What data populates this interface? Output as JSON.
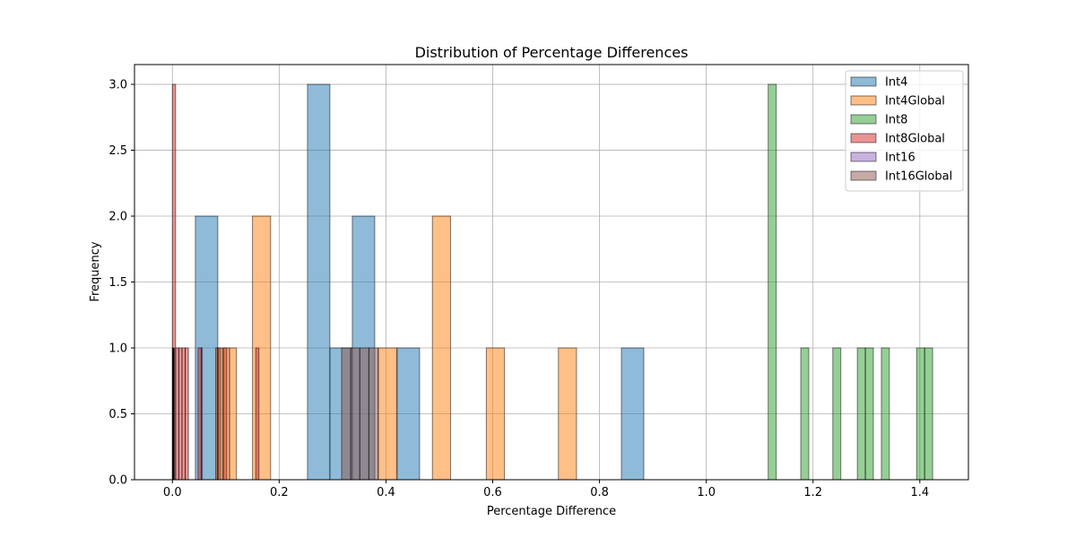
{
  "chart_data": {
    "type": "bar",
    "subtype": "histogram",
    "title": "Distribution of Percentage Differences",
    "xlabel": "Percentage Difference",
    "ylabel": "Frequency",
    "xlim": [
      -0.071,
      1.491
    ],
    "ylim": [
      0,
      3.15
    ],
    "xticks": [
      0.0,
      0.2,
      0.4,
      0.6,
      0.8,
      1.0,
      1.2,
      1.4
    ],
    "xtick_labels": [
      "0.0",
      "0.2",
      "0.4",
      "0.6",
      "0.8",
      "1.0",
      "1.2",
      "1.4"
    ],
    "yticks": [
      0.0,
      0.5,
      1.0,
      1.5,
      2.0,
      2.5,
      3.0
    ],
    "ytick_labels": [
      "0.0",
      "0.5",
      "1.0",
      "1.5",
      "2.0",
      "2.5",
      "3.0"
    ],
    "grid": true,
    "legend_position": "top-right",
    "bar_alpha": 0.5,
    "series": [
      {
        "name": "Int4",
        "color": "#1f77b4",
        "bins": [
          {
            "x0": 0.043,
            "x1": 0.085,
            "count": 2
          },
          {
            "x0": 0.253,
            "x1": 0.295,
            "count": 3
          },
          {
            "x0": 0.295,
            "x1": 0.337,
            "count": 1
          },
          {
            "x0": 0.337,
            "x1": 0.379,
            "count": 2
          },
          {
            "x0": 0.421,
            "x1": 0.463,
            "count": 1
          },
          {
            "x0": 0.841,
            "x1": 0.883,
            "count": 1
          }
        ]
      },
      {
        "name": "Int4Global",
        "color": "#ff7f0e",
        "bins": [
          {
            "x0": 0.081,
            "x1": 0.094,
            "count": 1
          },
          {
            "x0": 0.094,
            "x1": 0.107,
            "count": 1
          },
          {
            "x0": 0.107,
            "x1": 0.12,
            "count": 1
          },
          {
            "x0": 0.15,
            "x1": 0.184,
            "count": 2
          },
          {
            "x0": 0.386,
            "x1": 0.42,
            "count": 1
          },
          {
            "x0": 0.487,
            "x1": 0.521,
            "count": 2
          },
          {
            "x0": 0.588,
            "x1": 0.622,
            "count": 1
          },
          {
            "x0": 0.723,
            "x1": 0.757,
            "count": 1
          }
        ]
      },
      {
        "name": "Int8",
        "color": "#2ca02c",
        "bins": [
          {
            "x0": 1.116,
            "x1": 1.131,
            "count": 3
          },
          {
            "x0": 1.177,
            "x1": 1.192,
            "count": 1
          },
          {
            "x0": 1.237,
            "x1": 1.252,
            "count": 1
          },
          {
            "x0": 1.283,
            "x1": 1.298,
            "count": 1
          },
          {
            "x0": 1.298,
            "x1": 1.313,
            "count": 1
          },
          {
            "x0": 1.328,
            "x1": 1.343,
            "count": 1
          },
          {
            "x0": 1.394,
            "x1": 1.409,
            "count": 1
          },
          {
            "x0": 1.409,
            "x1": 1.424,
            "count": 1
          }
        ]
      },
      {
        "name": "Int8Global",
        "color": "#d62728",
        "bins": [
          {
            "x0": 0.0,
            "x1": 0.006,
            "count": 3
          },
          {
            "x0": 0.006,
            "x1": 0.012,
            "count": 1
          },
          {
            "x0": 0.012,
            "x1": 0.018,
            "count": 1
          },
          {
            "x0": 0.018,
            "x1": 0.024,
            "count": 1
          },
          {
            "x0": 0.024,
            "x1": 0.03,
            "count": 1
          },
          {
            "x0": 0.048,
            "x1": 0.054,
            "count": 1
          },
          {
            "x0": 0.084,
            "x1": 0.09,
            "count": 1
          },
          {
            "x0": 0.096,
            "x1": 0.102,
            "count": 1
          },
          {
            "x0": 0.156,
            "x1": 0.162,
            "count": 1
          }
        ]
      },
      {
        "name": "Int16",
        "color": "#9467bd",
        "bins": [
          {
            "x0": 0.0,
            "x1": 0.002,
            "count": 1
          },
          {
            "x0": 0.054,
            "x1": 0.056,
            "count": 1
          },
          {
            "x0": 0.084,
            "x1": 0.086,
            "count": 1
          }
        ]
      },
      {
        "name": "Int16Global",
        "color": "#8c564b",
        "bins": [
          {
            "x0": 0.317,
            "x1": 0.334,
            "count": 1
          },
          {
            "x0": 0.334,
            "x1": 0.351,
            "count": 1
          },
          {
            "x0": 0.351,
            "x1": 0.368,
            "count": 1
          },
          {
            "x0": 0.368,
            "x1": 0.385,
            "count": 1
          }
        ]
      }
    ],
    "overlay_marks": [
      {
        "name": "near-zero-dark-bar",
        "color": "#000000",
        "x0": 0.0,
        "x1": 0.004,
        "count": 1
      }
    ]
  }
}
